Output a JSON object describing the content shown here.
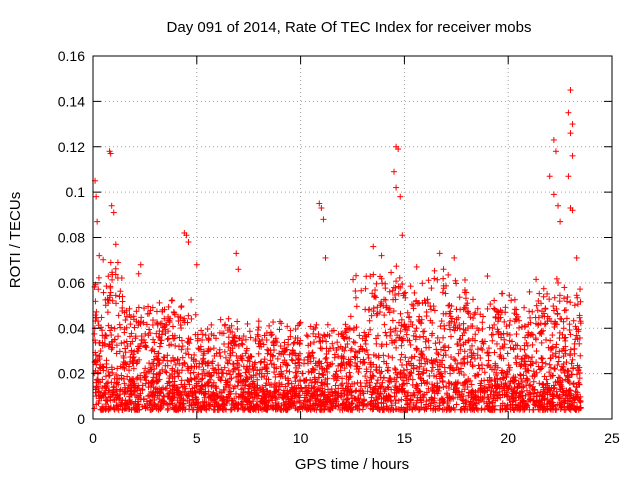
{
  "chart_data": {
    "type": "scatter",
    "title": "Day 091 of 2014, Rate Of TEC Index for receiver mobs",
    "xlabel": "GPS time / hours",
    "ylabel": "ROTI / TECUs",
    "xlim": [
      0,
      25
    ],
    "ylim": [
      0,
      0.16
    ],
    "xticks": [
      0,
      5,
      10,
      15,
      20,
      25
    ],
    "xtick_labels": [
      "0",
      "5",
      "10",
      "15",
      "20",
      "25"
    ],
    "yticks": [
      0,
      0.02,
      0.04,
      0.06,
      0.08,
      0.1,
      0.12,
      0.14,
      0.16
    ],
    "ytick_labels": [
      "0",
      "0.02",
      "0.04",
      "0.06",
      "0.08",
      "0.1",
      "0.12",
      "0.14",
      "0.16"
    ],
    "grid": true,
    "marker": "+",
    "color": "#ff0000",
    "series": [
      {
        "name": "ROTI",
        "points": [
          [
            0.1,
            0.105
          ],
          [
            0.15,
            0.098
          ],
          [
            0.2,
            0.087
          ],
          [
            0.3,
            0.072
          ],
          [
            0.8,
            0.118
          ],
          [
            0.85,
            0.117
          ],
          [
            0.9,
            0.094
          ],
          [
            1.0,
            0.091
          ],
          [
            1.1,
            0.077
          ],
          [
            1.2,
            0.069
          ],
          [
            2.2,
            0.064
          ],
          [
            2.3,
            0.068
          ],
          [
            4.4,
            0.082
          ],
          [
            4.5,
            0.081
          ],
          [
            4.6,
            0.078
          ],
          [
            5.0,
            0.068
          ],
          [
            6.9,
            0.073
          ],
          [
            7.0,
            0.066
          ],
          [
            10.9,
            0.095
          ],
          [
            11.0,
            0.093
          ],
          [
            11.1,
            0.088
          ],
          [
            11.2,
            0.071
          ],
          [
            13.5,
            0.076
          ],
          [
            13.9,
            0.072
          ],
          [
            14.6,
            0.12
          ],
          [
            14.7,
            0.119
          ],
          [
            14.5,
            0.109
          ],
          [
            14.6,
            0.102
          ],
          [
            14.8,
            0.098
          ],
          [
            14.9,
            0.081
          ],
          [
            16.7,
            0.073
          ],
          [
            17.4,
            0.071
          ],
          [
            19.0,
            0.063
          ],
          [
            22.2,
            0.123
          ],
          [
            22.3,
            0.118
          ],
          [
            22.0,
            0.107
          ],
          [
            22.2,
            0.099
          ],
          [
            22.4,
            0.094
          ],
          [
            22.5,
            0.087
          ],
          [
            23.0,
            0.145
          ],
          [
            22.9,
            0.135
          ],
          [
            23.1,
            0.13
          ],
          [
            23.0,
            0.126
          ],
          [
            23.1,
            0.116
          ],
          [
            22.9,
            0.107
          ],
          [
            23.0,
            0.093
          ],
          [
            23.1,
            0.092
          ],
          [
            23.3,
            0.071
          ]
        ]
      }
    ]
  }
}
